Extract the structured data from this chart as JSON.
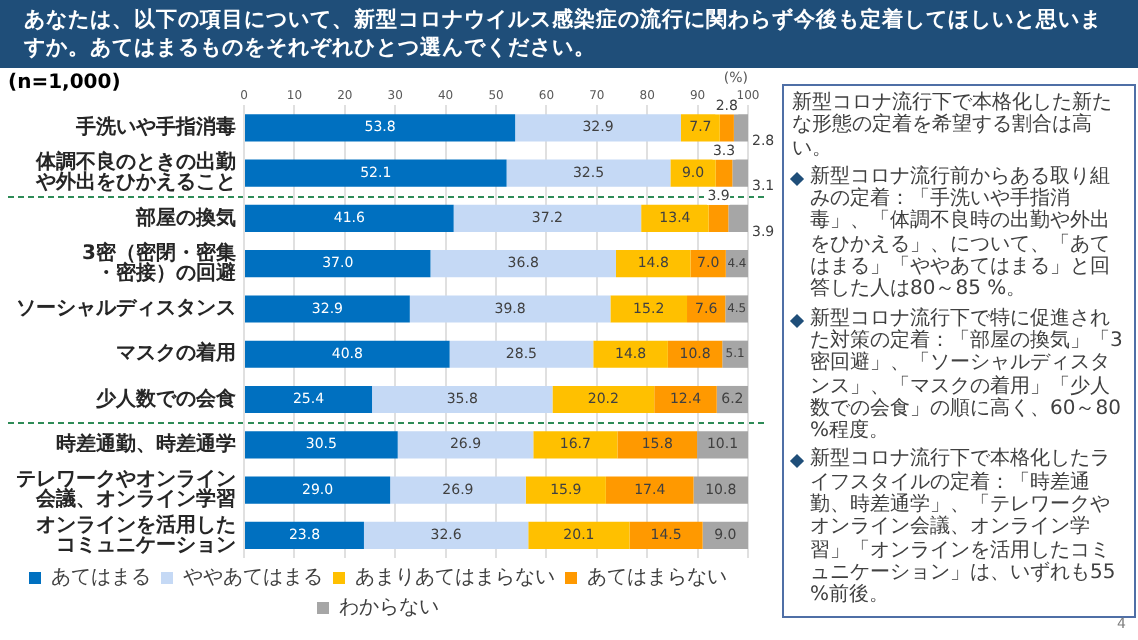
{
  "chart_data": {
    "type": "bar",
    "orientation": "horizontal",
    "stacked": true,
    "title": "あなたは、以下の項目について、新型コロナウイルス感染症の流行に関わらず今後も定着してほしいと思いますか。あてはまるものをそれぞれひとつ選んでください。",
    "subtitle": "(n=1,000)",
    "xlabel": "(%)",
    "categories": [
      "手洗いや手指消毒",
      "体調不良のときの出勤や外出をひかえること",
      "部屋の換気",
      "3密（密閉・密集・密接）の回避",
      "ソーシャルディスタンス",
      "マスクの着用",
      "少人数での会食",
      "時差通勤、時差通学",
      "テレワークやオンライン会議、オンライン学習",
      "オンラインを活用したコミュニケーション"
    ],
    "series": [
      {
        "name": "あてはまる",
        "color": "#0070c0",
        "values": [
          53.8,
          52.1,
          41.6,
          37.0,
          32.9,
          40.8,
          25.4,
          30.5,
          29.0,
          23.8
        ],
        "value_labels": [
          "53.8",
          "52.1",
          "41.6",
          "37.0",
          "32.9",
          "40.8",
          "25.4",
          "30.5",
          "29.0",
          "23.8"
        ]
      },
      {
        "name": "ややあてはまる",
        "color": "#c5d9f5",
        "values": [
          32.9,
          32.5,
          37.2,
          36.8,
          39.8,
          28.5,
          35.8,
          26.9,
          26.9,
          32.6
        ],
        "value_labels": [
          "32.9",
          "32.5",
          "37.2",
          "36.8",
          "39.8",
          "28.5",
          "35.8",
          "26.9",
          "26.9",
          "32.6"
        ]
      },
      {
        "name": "あまりあてはまらない",
        "color": "#ffc000",
        "values": [
          7.7,
          9.0,
          13.4,
          14.8,
          15.2,
          14.8,
          20.2,
          16.7,
          15.9,
          20.1
        ],
        "value_labels": [
          "7.7",
          "9.0",
          "13.4",
          "14.8",
          "15.2",
          "14.8",
          "20.2",
          "16.7",
          "15.9",
          "20.1"
        ]
      },
      {
        "name": "あてはまらない",
        "color": "#ff9900",
        "values": [
          2.8,
          3.3,
          3.9,
          7.0,
          7.6,
          10.8,
          12.4,
          15.8,
          17.4,
          14.5
        ],
        "value_labels": [
          "2.8",
          "3.3",
          "3.9",
          "7.0",
          "7.6",
          "10.8",
          "12.4",
          "15.8",
          "17.4",
          "14.5"
        ]
      },
      {
        "name": "わからない",
        "color": "#a6a6a6",
        "values": [
          2.8,
          3.1,
          3.9,
          4.4,
          4.5,
          5.1,
          6.2,
          10.1,
          10.8,
          9.0
        ],
        "value_labels": [
          "2.8",
          "3.1",
          "3.9",
          "4.4",
          "4.5",
          "5.1",
          "6.2",
          "10.1",
          "10.8",
          "9.0"
        ]
      }
    ],
    "xlim": [
      0,
      100
    ],
    "xticks": [
      0,
      10,
      20,
      30,
      40,
      50,
      60,
      70,
      80,
      90,
      100
    ],
    "grid": "x",
    "legend": "bottom",
    "annotations": [
      "新型コロナ流行下で本格化した新たな形態の定着を希望する割合は高い。",
      "新型コロナ流行前からある取り組みの定着：「手洗いや手指消毒」、「体調不良時の出勤や外出をひかえる」、について、「あてはまる」「ややあてはまる」と回答した人は80～85 %。",
      "新型コロナ流行下で特に促進された対策の定着：「部屋の換気」「3密回避」、「ソーシャルディスタンス」、「マスクの着用」「少人数での会食」の順に高く、60～80 %程度。",
      "新型コロナ流行下で本格化したライフスタイルの定着：「時差通勤、時差通学」、「テレワークやオンライン会議、オンライン学習」「オンラインを活用したコミュニケーション」は、いずれも55 %前後。",
      "4"
    ]
  }
}
